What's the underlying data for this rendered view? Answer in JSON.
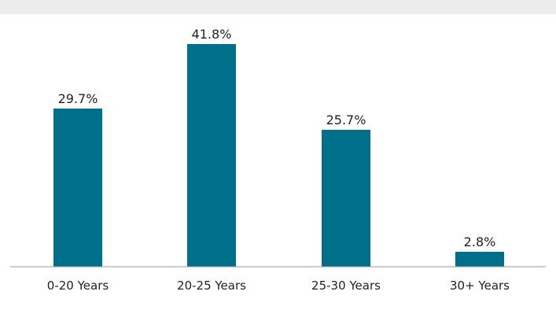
{
  "chart_data": {
    "type": "bar",
    "title": "",
    "xlabel": "",
    "ylabel": "",
    "categories": [
      "0-20 Years",
      "20-25 Years",
      "25-30 Years",
      "30+ Years"
    ],
    "values": [
      29.7,
      41.8,
      25.7,
      2.8
    ],
    "value_labels": [
      "29.7%",
      "41.8%",
      "25.7%",
      "2.8%"
    ],
    "ylim": [
      0,
      41.8
    ],
    "grid": false,
    "bar_color": "#00708a",
    "axis_color": "#9a9a9a"
  }
}
